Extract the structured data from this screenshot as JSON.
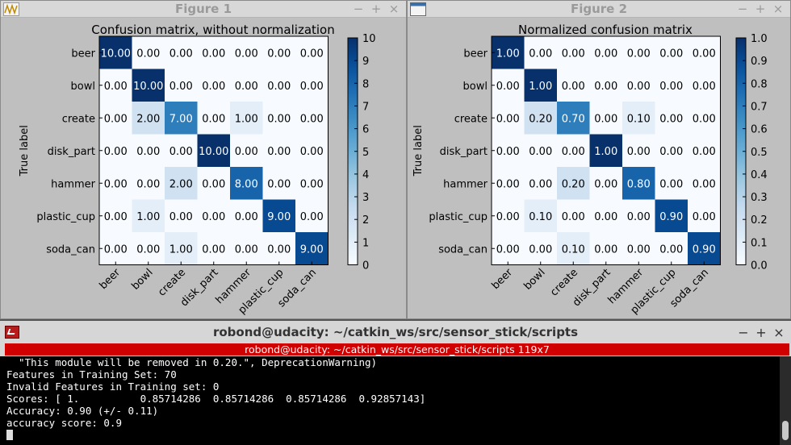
{
  "figures": [
    {
      "window_title": "Figure 1",
      "chart_data": {
        "type": "heatmap",
        "title": "Confusion matrix, without normalization",
        "ylabel": "True label",
        "xlabel": "",
        "row_labels": [
          "beer",
          "bowl",
          "create",
          "disk_part",
          "hammer",
          "plastic_cup",
          "soda_can"
        ],
        "col_labels": [
          "beer",
          "bowl",
          "create",
          "disk_part",
          "hammer",
          "plastic_cup",
          "soda_can"
        ],
        "values": [
          [
            10,
            0,
            0,
            0,
            0,
            0,
            0
          ],
          [
            0,
            10,
            0,
            0,
            0,
            0,
            0
          ],
          [
            0,
            2,
            7,
            0,
            1,
            0,
            0
          ],
          [
            0,
            0,
            0,
            10,
            0,
            0,
            0
          ],
          [
            0,
            0,
            2,
            0,
            8,
            0,
            0
          ],
          [
            0,
            1,
            0,
            0,
            0,
            9,
            0
          ],
          [
            0,
            0,
            1,
            0,
            0,
            0,
            9
          ]
        ],
        "cell_labels": [
          [
            "10.00",
            "0.00",
            "0.00",
            "0.00",
            "0.00",
            "0.00",
            "0.00"
          ],
          [
            "0.00",
            "10.00",
            "0.00",
            "0.00",
            "0.00",
            "0.00",
            "0.00"
          ],
          [
            "0.00",
            "2.00",
            "7.00",
            "0.00",
            "1.00",
            "0.00",
            "0.00"
          ],
          [
            "0.00",
            "0.00",
            "0.00",
            "10.00",
            "0.00",
            "0.00",
            "0.00"
          ],
          [
            "0.00",
            "0.00",
            "2.00",
            "0.00",
            "8.00",
            "0.00",
            "0.00"
          ],
          [
            "0.00",
            "1.00",
            "0.00",
            "0.00",
            "0.00",
            "9.00",
            "0.00"
          ],
          [
            "0.00",
            "0.00",
            "1.00",
            "0.00",
            "0.00",
            "0.00",
            "9.00"
          ]
        ],
        "vmin": 0,
        "vmax": 10,
        "colorbar_ticks": [
          "0",
          "1",
          "2",
          "3",
          "4",
          "5",
          "6",
          "7",
          "8",
          "9",
          "10"
        ],
        "colormap": "Blues"
      }
    },
    {
      "window_title": "Figure 2",
      "chart_data": {
        "type": "heatmap",
        "title": "Normalized confusion matrix",
        "ylabel": "True label",
        "xlabel": "",
        "row_labels": [
          "beer",
          "bowl",
          "create",
          "disk_part",
          "hammer",
          "plastic_cup",
          "soda_can"
        ],
        "col_labels": [
          "beer",
          "bowl",
          "create",
          "disk_part",
          "hammer",
          "plastic_cup",
          "soda_can"
        ],
        "values": [
          [
            1.0,
            0,
            0,
            0,
            0,
            0,
            0
          ],
          [
            0,
            1.0,
            0,
            0,
            0,
            0,
            0
          ],
          [
            0,
            0.2,
            0.7,
            0,
            0.1,
            0,
            0
          ],
          [
            0,
            0,
            0,
            1.0,
            0,
            0,
            0
          ],
          [
            0,
            0,
            0.2,
            0,
            0.8,
            0,
            0
          ],
          [
            0,
            0.1,
            0,
            0,
            0,
            0.9,
            0
          ],
          [
            0,
            0,
            0.1,
            0,
            0,
            0,
            0.9
          ]
        ],
        "cell_labels": [
          [
            "1.00",
            "0.00",
            "0.00",
            "0.00",
            "0.00",
            "0.00",
            "0.00"
          ],
          [
            "0.00",
            "1.00",
            "0.00",
            "0.00",
            "0.00",
            "0.00",
            "0.00"
          ],
          [
            "0.00",
            "0.20",
            "0.70",
            "0.00",
            "0.10",
            "0.00",
            "0.00"
          ],
          [
            "0.00",
            "0.00",
            "0.00",
            "1.00",
            "0.00",
            "0.00",
            "0.00"
          ],
          [
            "0.00",
            "0.00",
            "0.20",
            "0.00",
            "0.80",
            "0.00",
            "0.00"
          ],
          [
            "0.00",
            "0.10",
            "0.00",
            "0.00",
            "0.00",
            "0.90",
            "0.00"
          ],
          [
            "0.00",
            "0.00",
            "0.10",
            "0.00",
            "0.00",
            "0.00",
            "0.90"
          ]
        ],
        "vmin": 0,
        "vmax": 1,
        "colorbar_ticks": [
          "0.0",
          "0.1",
          "0.2",
          "0.3",
          "0.4",
          "0.5",
          "0.6",
          "0.7",
          "0.8",
          "0.9",
          "1.0"
        ],
        "colormap": "Blues"
      }
    }
  ],
  "window_controls": {
    "minimize": "−",
    "maximize": "+",
    "close": "×"
  },
  "terminal": {
    "window_title": "robond@udacity: ~/catkin_ws/src/sensor_stick/scripts",
    "tab_label": "robond@udacity: ~/catkin_ws/src/sensor_stick/scripts 119x7",
    "lines": [
      "  \"This module will be removed in 0.20.\", DeprecationWarning)",
      "Features in Training Set: 70",
      "Invalid Features in Training set: 0",
      "Scores: [ 1.          0.85714286  0.85714286  0.85714286  0.92857143]",
      "Accuracy: 0.90 (+/- 0.11)",
      "accuracy score: 0.9"
    ]
  },
  "colors": {
    "blues_low": "#f7fbff",
    "blues_high": "#08306b",
    "terminal_tab": "#d00000"
  }
}
